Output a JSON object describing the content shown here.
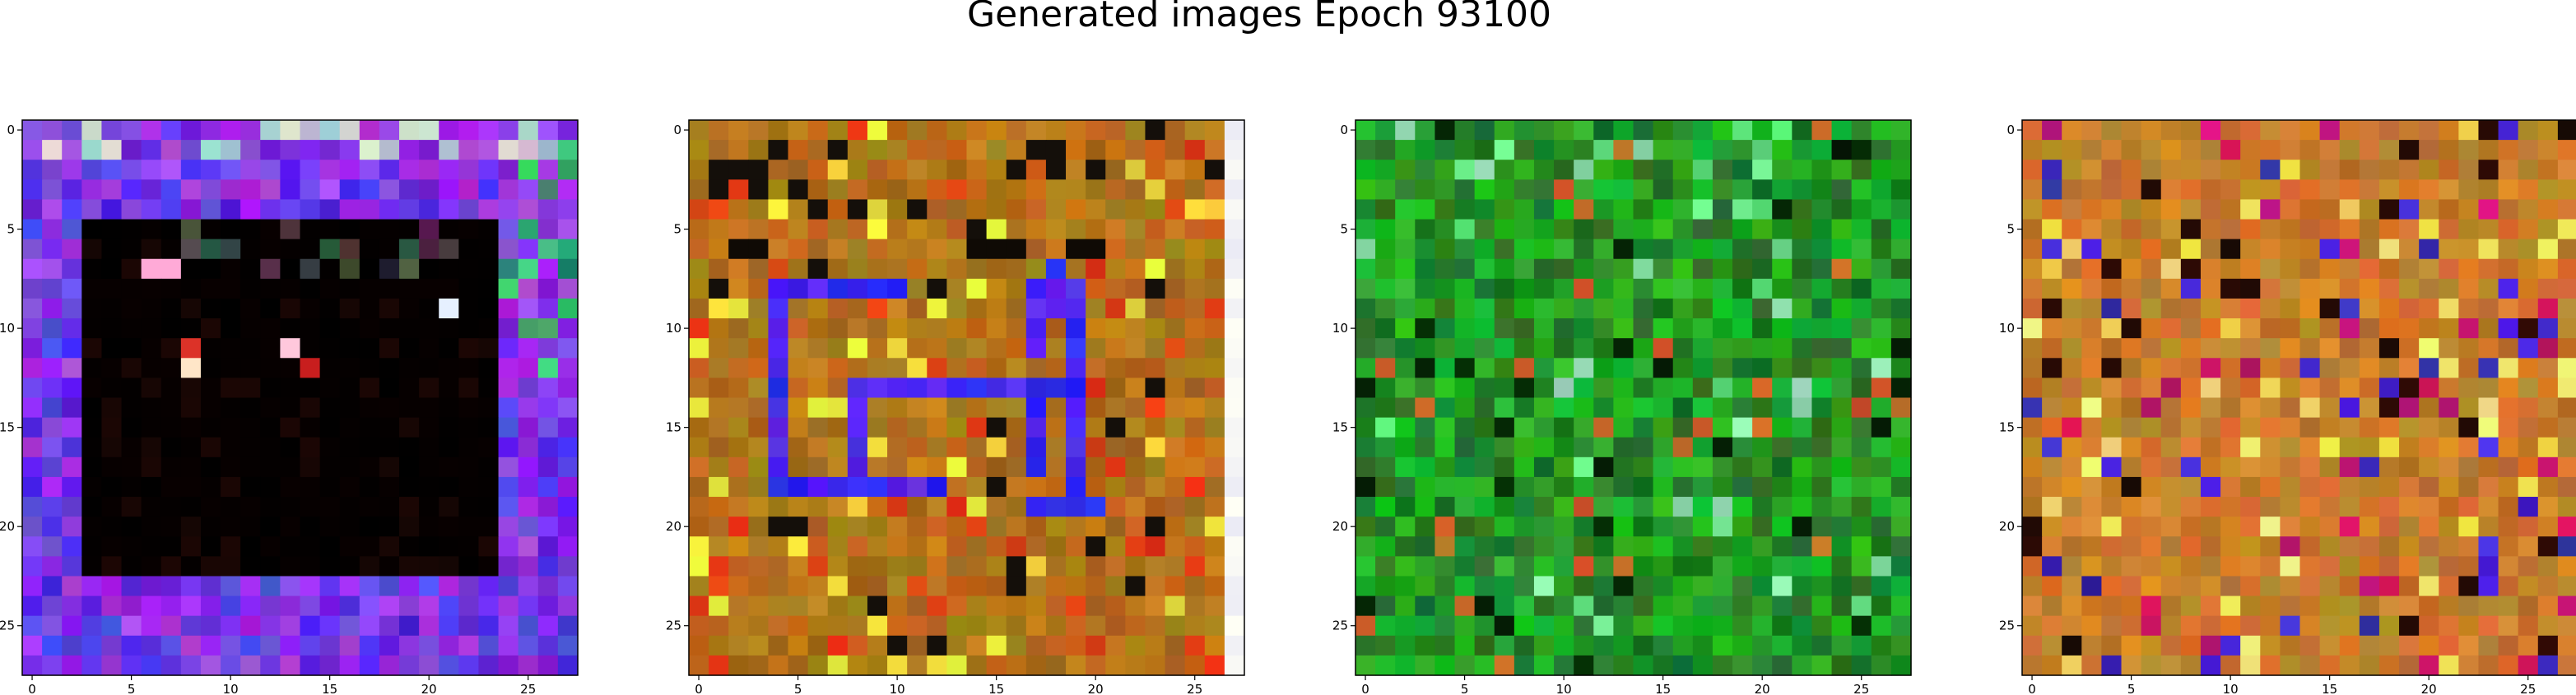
{
  "figure": {
    "title": "Generated images Epoch 93100"
  },
  "panels": [
    {
      "name": "generated-image-1",
      "description_colors": {
        "background": "#1e20ff",
        "interior": "#000000",
        "highlights": [
          "#ff80c0",
          "#ffffff",
          "#ff2020",
          "#00c080"
        ]
      },
      "pattern": "dark-square-on-blue",
      "x_ticks": [
        "0",
        "5",
        "10",
        "15",
        "20",
        "25"
      ],
      "y_ticks": [
        "0",
        "5",
        "10",
        "15",
        "20",
        "25"
      ]
    },
    {
      "name": "generated-image-2",
      "description_colors": {
        "background": "#b07808",
        "stroke": "#2a18ff",
        "highlights": [
          "#000000",
          "#e8e040",
          "#ff80ff",
          "#c02020"
        ]
      },
      "pattern": "blue-spiral-on-amber",
      "x_ticks": [
        "0",
        "5",
        "10",
        "15",
        "20",
        "25"
      ],
      "y_ticks": [
        "0",
        "5",
        "10",
        "15",
        "20",
        "25"
      ]
    },
    {
      "name": "generated-image-3",
      "description_colors": {
        "background": "#0e8a10",
        "highlights": [
          "#40e060",
          "#000000",
          "#c04020",
          "#d0a060"
        ]
      },
      "pattern": "green-noise",
      "x_ticks": [
        "0",
        "5",
        "10",
        "15",
        "20",
        "25"
      ],
      "y_ticks": [
        "0",
        "5",
        "10",
        "15",
        "20",
        "25"
      ]
    },
    {
      "name": "generated-image-4",
      "description_colors": {
        "background": "#c07818",
        "highlights": [
          "#3020c0",
          "#ffe040",
          "#c01060",
          "#000000"
        ]
      },
      "pattern": "amber-noise",
      "x_ticks": [
        "0",
        "5",
        "10",
        "15",
        "20",
        "25"
      ],
      "y_ticks": [
        "0",
        "5",
        "10",
        "15",
        "20",
        "25"
      ]
    }
  ]
}
